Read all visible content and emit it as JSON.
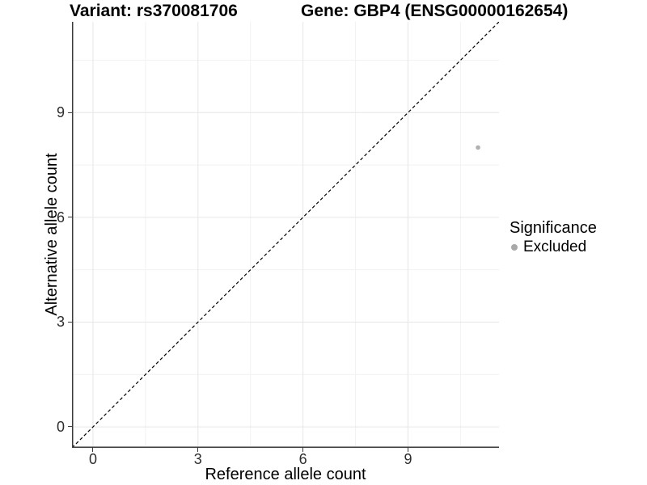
{
  "figure": {
    "title_variant": "Variant: rs370081706",
    "title_gene": "Gene: GBP4 (ENSG00000162654)"
  },
  "axes": {
    "x_label": "Reference allele count",
    "y_label": "Alternative allele count"
  },
  "legend": {
    "title": "Significance",
    "entries": [
      {
        "label": "Excluded",
        "color": "#a9a9a9"
      }
    ]
  },
  "chart_data": {
    "type": "scatter",
    "title": "Variant: rs370081706 — Gene: GBP4 (ENSG00000162654)",
    "xlabel": "Reference allele count",
    "ylabel": "Alternative allele count",
    "xlim": [
      -0.6,
      11.6
    ],
    "ylim": [
      -0.6,
      11.6
    ],
    "x_ticks": [
      0,
      3,
      6,
      9
    ],
    "y_ticks": [
      0,
      3,
      6,
      9
    ],
    "x_minor_ticks": [
      1.5,
      4.5,
      7.5,
      10.5
    ],
    "y_minor_ticks": [
      1.5,
      4.5,
      7.5,
      10.5
    ],
    "grid": {
      "major_color": "#e6e6e6",
      "minor_color": "#f2f2f2",
      "visible": true
    },
    "axis_color": "#3a3a3a",
    "reference_line": {
      "kind": "identity",
      "equation": "y = x",
      "style": "dashed",
      "color": "#000000"
    },
    "series": [
      {
        "name": "Excluded",
        "color": "#b0b0b0",
        "marker": "circle",
        "points": [
          {
            "x": 11,
            "y": 8
          }
        ]
      }
    ],
    "legend_position": "right",
    "legend_title": "Significance"
  }
}
